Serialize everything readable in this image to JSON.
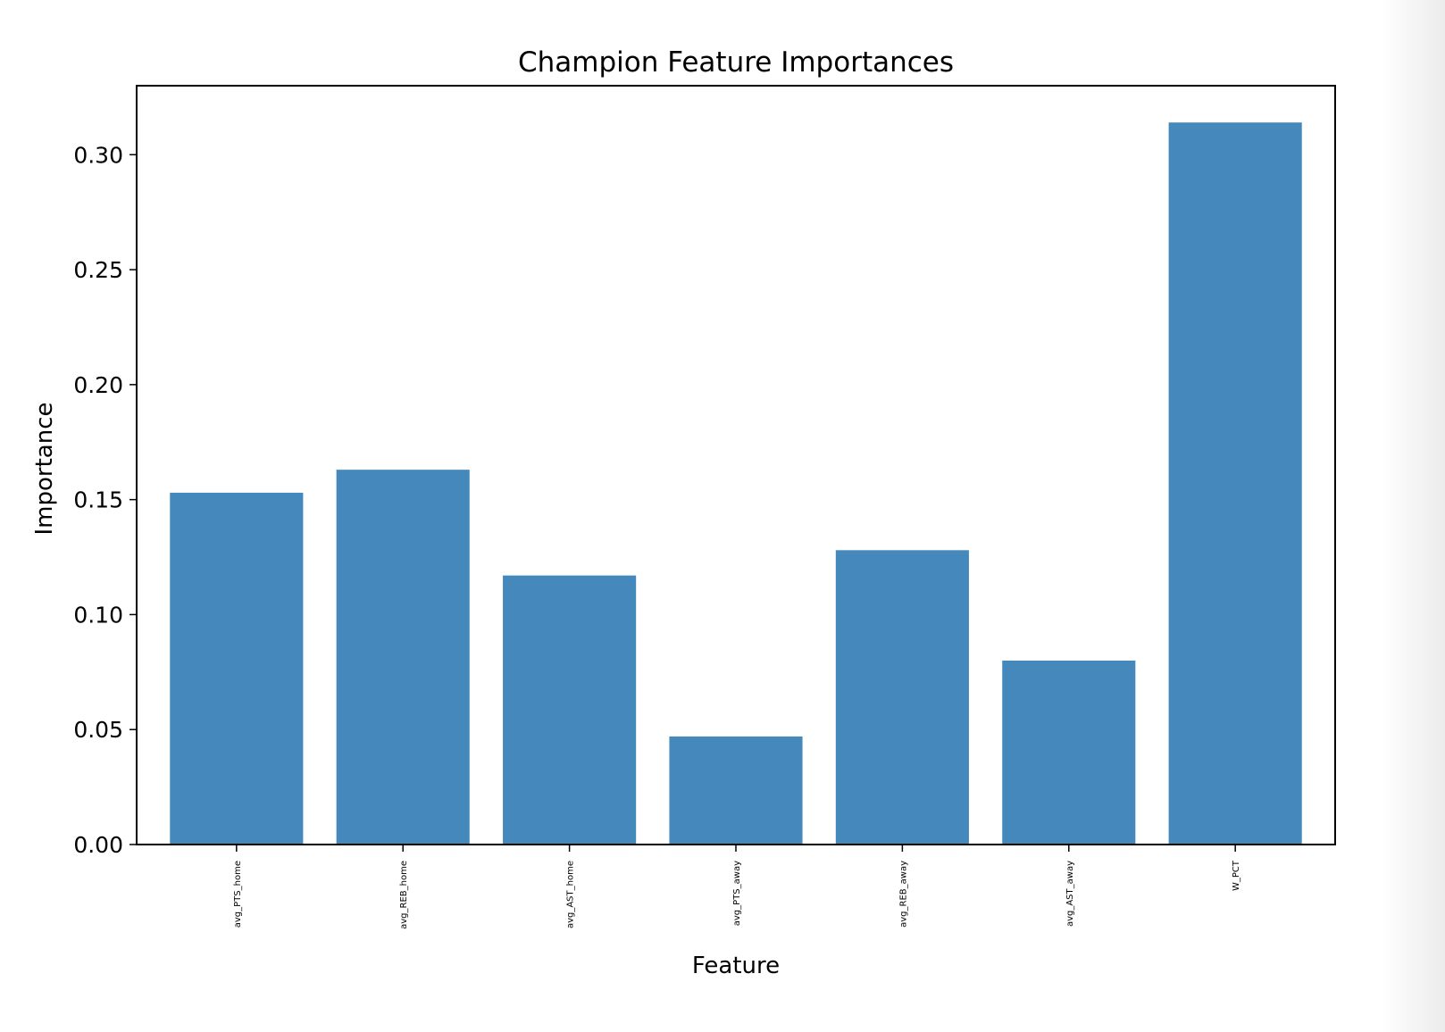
{
  "chart_data": {
    "type": "bar",
    "title": "Champion Feature Importances",
    "xlabel": "Feature",
    "ylabel": "Importance",
    "categories": [
      "avg_PTS_home",
      "avg_REB_home",
      "avg_AST_home",
      "avg_PTS_away",
      "avg_REB_away",
      "avg_AST_away",
      "W_PCT"
    ],
    "values": [
      0.153,
      0.163,
      0.117,
      0.047,
      0.128,
      0.08,
      0.314
    ],
    "ylim": [
      0,
      0.33
    ],
    "yticks": [
      "0.00",
      "0.05",
      "0.10",
      "0.15",
      "0.20",
      "0.25",
      "0.30"
    ],
    "grid": false,
    "bar_color": "#4589bc",
    "xtick_rotation": "vertical"
  }
}
